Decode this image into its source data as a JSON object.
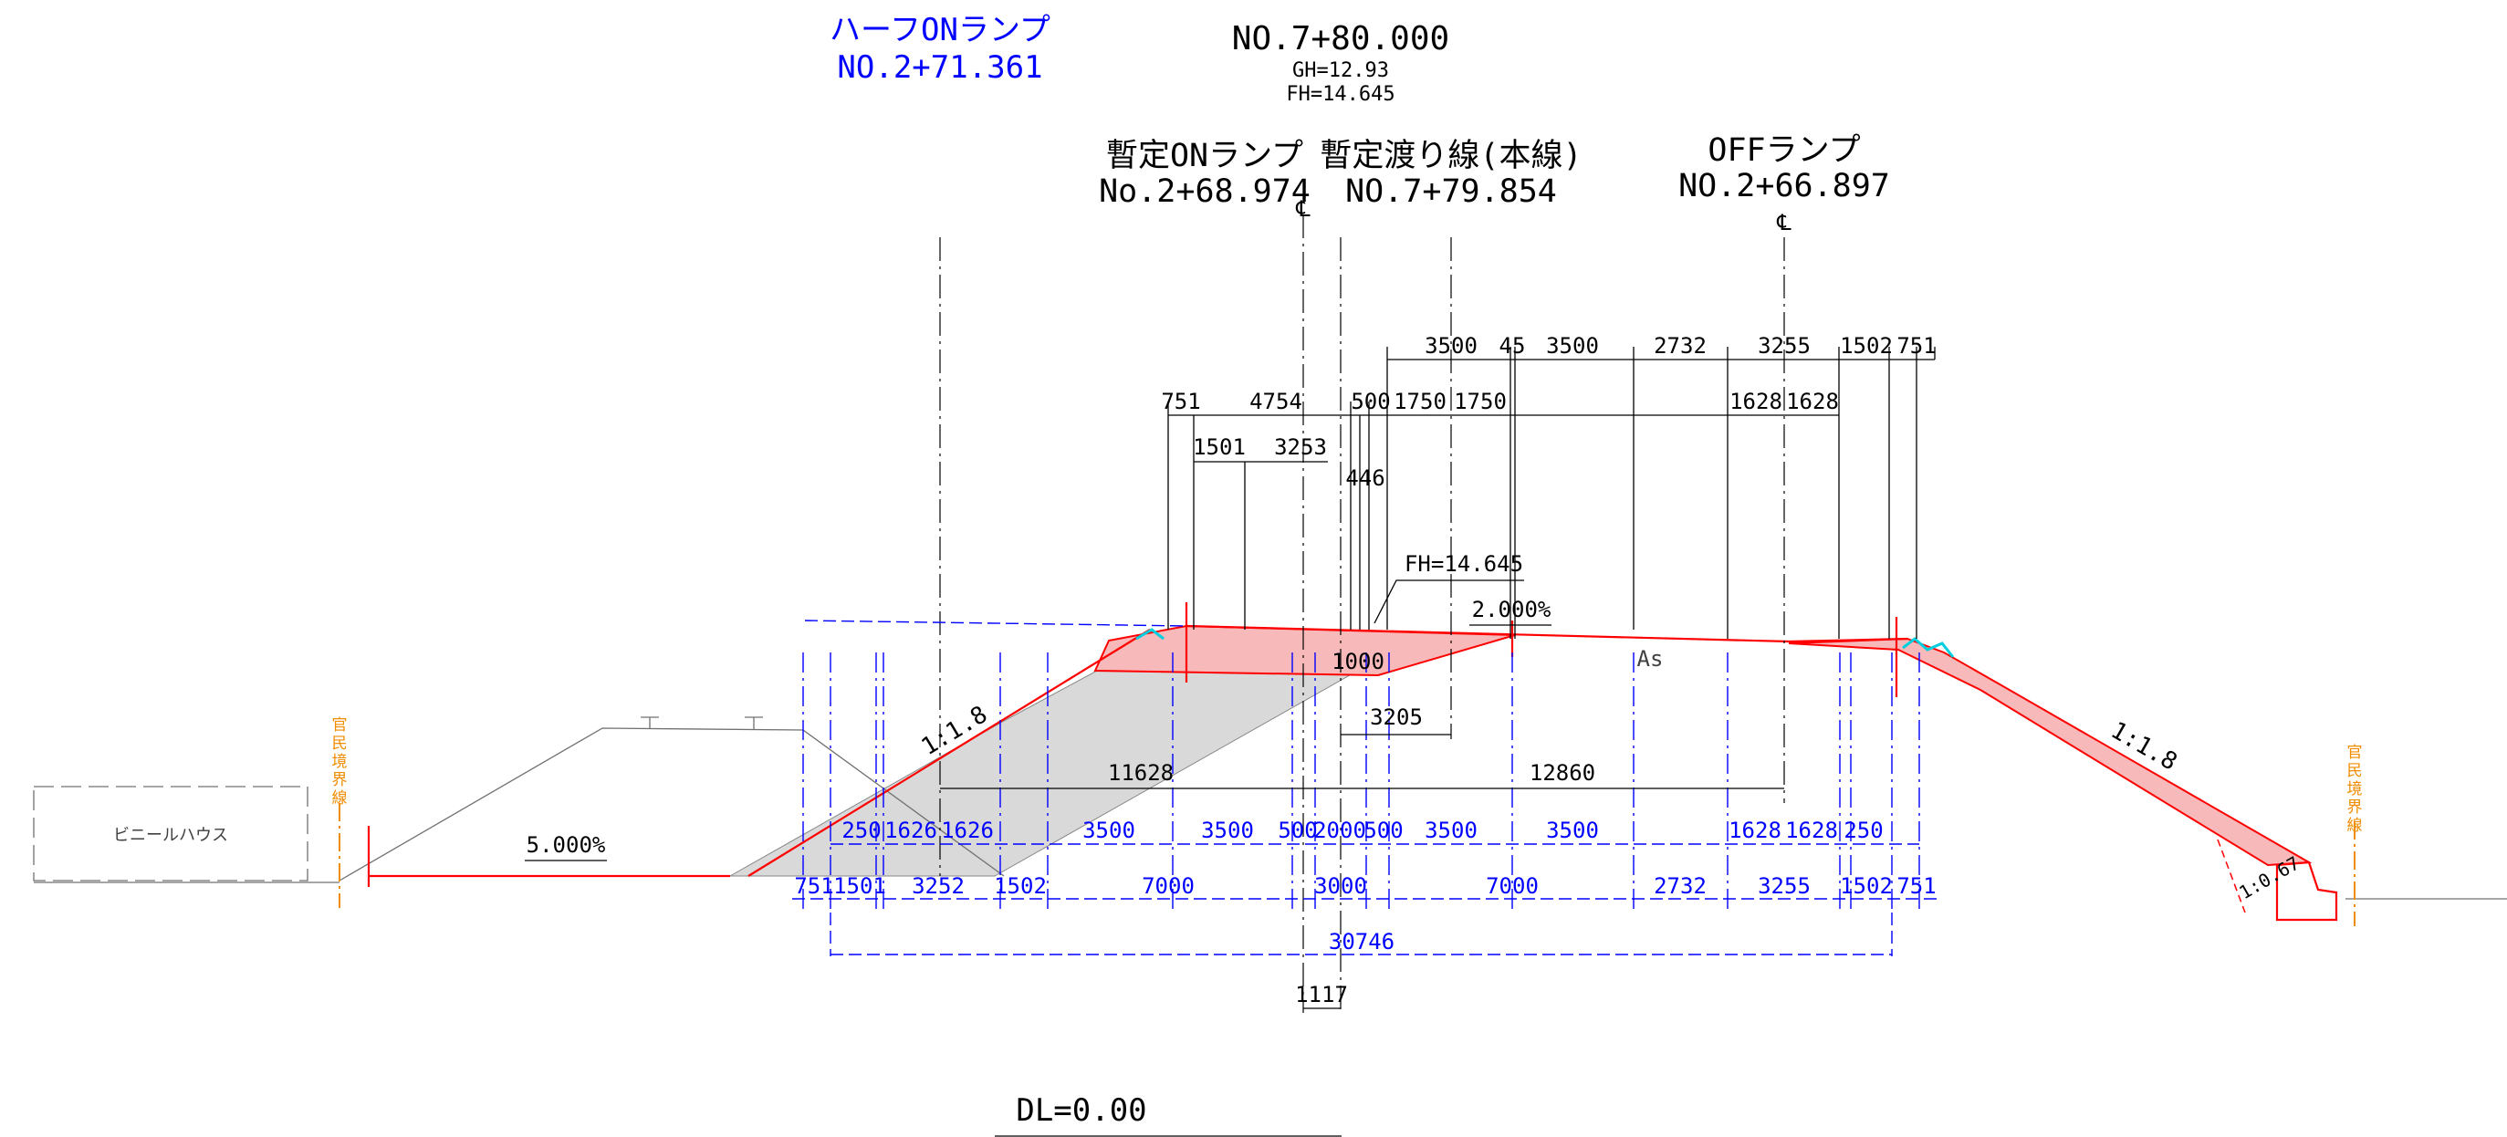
{
  "headings": {
    "half_on_ramp": {
      "name": "ハーフONランプ",
      "station": "NO.2+71.361"
    },
    "center_station": {
      "station": "NO.7+80.000",
      "gh": "GH=12.93",
      "fh": "FH=14.645"
    },
    "temp_on_ramp": {
      "name": "暫定ONランプ",
      "station": "No.2+68.974"
    },
    "temp_crossover": {
      "name": "暫定渡り線(本線)",
      "station": "NO.7+79.854"
    },
    "off_ramp": {
      "name": "OFFランプ",
      "station": "NO.2+66.897"
    }
  },
  "centerline_symbols": [
    "℄",
    "℄"
  ],
  "annotations": {
    "fh_label": "FH=14.645",
    "crossfall": "2.000%",
    "left_fall": "5.000%",
    "slope_left": "1:1.8",
    "slope_right": "1:1.8",
    "slope_wall": "1:0.67",
    "pavement": "As",
    "depth": "1000",
    "dl": "DL=0.00",
    "vinyl_house": "ビニールハウス",
    "boundary_left": [
      "官",
      "民",
      "境",
      "界",
      "線"
    ],
    "boundary_right": [
      "官",
      "民",
      "境",
      "界",
      "線"
    ]
  },
  "dims_black": {
    "row1": [
      "3500",
      "45",
      "3500",
      "2732",
      "3255",
      "1502",
      "751"
    ],
    "row2": [
      "751",
      "4754",
      "500",
      "1750",
      "1750",
      "1628",
      "1628"
    ],
    "row3": [
      "1501",
      "3253"
    ],
    "val_446": "446",
    "val_3205": "3205",
    "val_11628": "11628",
    "val_12860": "12860",
    "val_1117": "1117"
  },
  "dims_blue": {
    "row1": [
      "250",
      "1626",
      "1626",
      "3500",
      "3500",
      "500",
      "2000",
      "500",
      "3500",
      "3500",
      "1628",
      "1628",
      "250"
    ],
    "row2": [
      "751",
      "1501",
      "3252",
      "1502",
      "7000",
      "3000",
      "7000",
      "2732",
      "3255",
      "1502",
      "751"
    ],
    "total": "30746"
  },
  "colors": {
    "design_red": "#ff0000",
    "fill_red": "#f7b9b9",
    "fill_gray": "#d9d9d9",
    "dim_blue": "#0000ff",
    "boundary_orange": "#f08c00",
    "drain_cyan": "#00cfe0"
  }
}
